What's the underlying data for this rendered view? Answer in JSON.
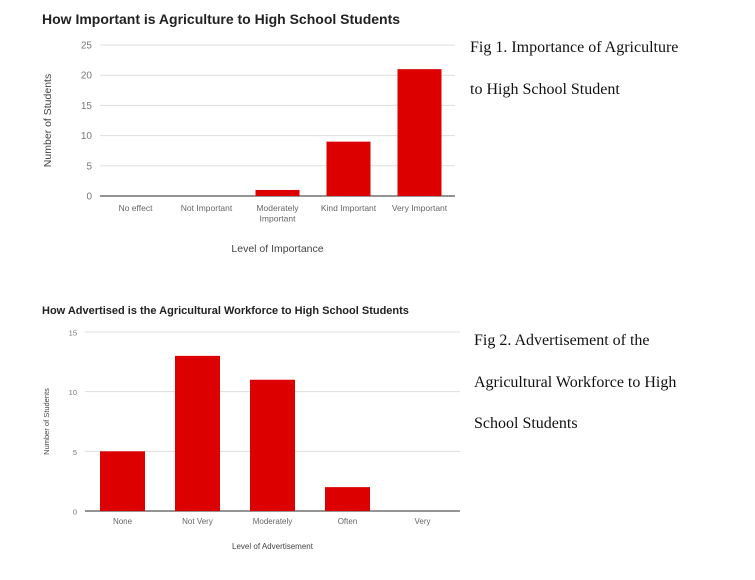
{
  "chart_data": [
    {
      "type": "bar",
      "title": "How Important is Agriculture to High School Students",
      "xlabel": "Level of Importance",
      "ylabel": "Number of Students",
      "categories": [
        "No effect",
        "Not Important",
        "Moderately Important",
        "Kind Important",
        "Very Important"
      ],
      "values": [
        0,
        0,
        1,
        9,
        21
      ],
      "ylim": [
        0,
        25
      ],
      "yticks": [
        0,
        5,
        10,
        15,
        20,
        25
      ],
      "grid": true,
      "bar_color": "#dd0000"
    },
    {
      "type": "bar",
      "title": "How Advertised is the Agricultural Workforce to High School Students",
      "xlabel": "Level of Advertisement",
      "ylabel": "Number of Students",
      "categories": [
        "None",
        "Not Very",
        "Moderately",
        "Often",
        "Very"
      ],
      "values": [
        5,
        13,
        11,
        2,
        0
      ],
      "ylim": [
        0,
        15
      ],
      "yticks": [
        0,
        5,
        10,
        15
      ],
      "grid": true,
      "bar_color": "#dd0000"
    }
  ],
  "captions": [
    {
      "lines": [
        "Fig 1. Importance of Agriculture",
        "to High School Student"
      ]
    },
    {
      "lines": [
        "Fig 2. Advertisement of the",
        "Agricultural Workforce to High",
        "School Students"
      ]
    }
  ]
}
